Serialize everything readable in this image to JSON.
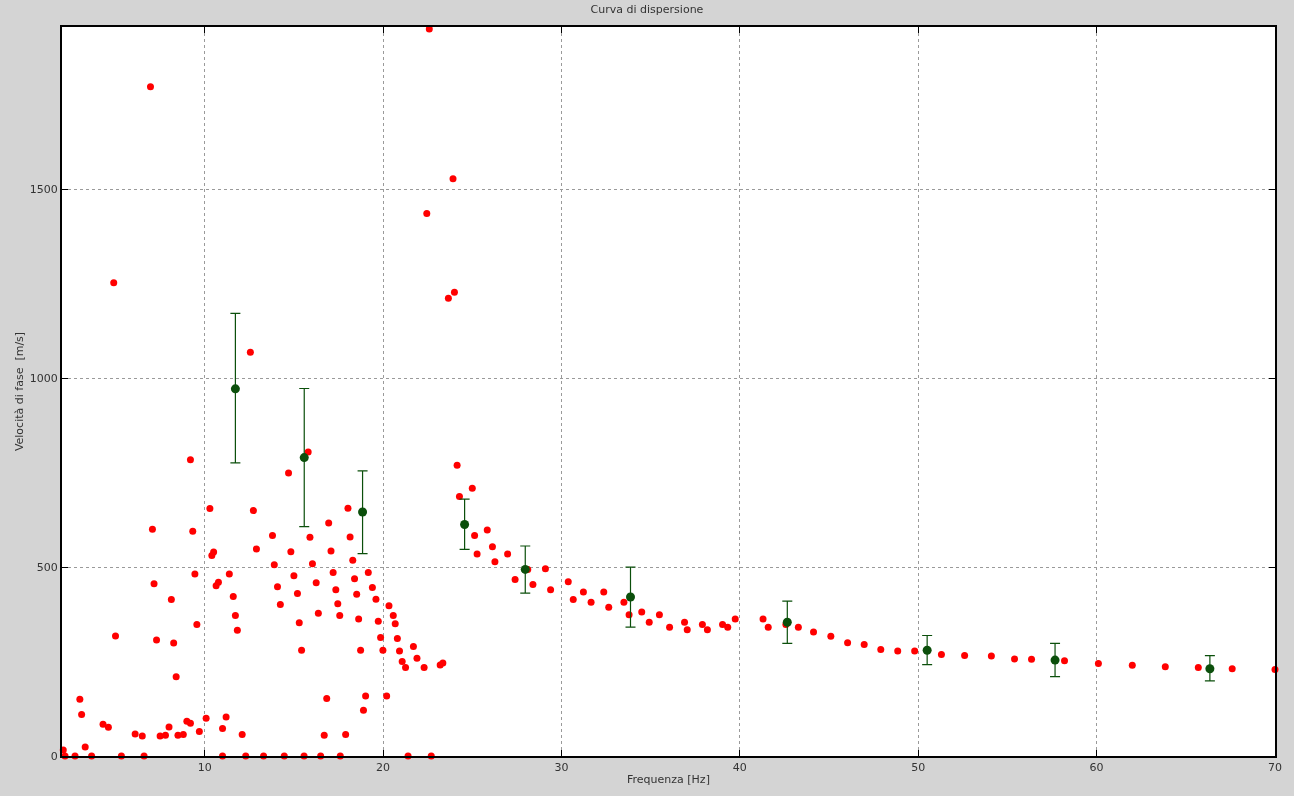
{
  "chart_data": {
    "type": "scatter",
    "title": "Curva di dispersione",
    "xlabel": "Frequenza [Hz]",
    "ylabel": "Velocità di fase  [m/s]",
    "xlim": [
      2,
      70
    ],
    "xticks": [
      10,
      20,
      30,
      40,
      50,
      60,
      70
    ],
    "ylim": [
      0,
      1930
    ],
    "yticks": [
      0,
      500,
      1000,
      1500
    ],
    "grid": true,
    "marker": "circle",
    "series": [
      {
        "color": "#ff0000",
        "x": [
          2.07,
          3.0,
          3.1,
          3.3,
          4.3,
          4.6,
          4.9,
          5.0,
          6.1,
          6.5,
          6.96,
          7.07,
          7.16,
          7.3,
          7.5,
          7.8,
          8.0,
          8.13,
          8.26,
          8.4,
          8.5,
          8.8,
          9.0,
          9.2,
          9.2,
          9.33,
          9.45,
          9.56,
          9.7,
          10.08,
          10.29,
          10.4,
          10.5,
          10.64,
          10.77,
          11.0,
          11.2,
          11.38,
          11.6,
          11.72,
          11.83,
          12.1,
          12.56,
          12.73,
          12.9,
          13.8,
          13.9,
          14.08,
          14.24,
          14.7,
          14.83,
          15.0,
          15.2,
          15.3,
          15.43,
          15.8,
          15.9,
          16.04,
          16.25,
          16.37,
          16.7,
          16.84,
          16.95,
          17.08,
          17.2,
          17.35,
          17.46,
          17.57,
          17.9,
          18.03,
          18.15,
          18.3,
          18.4,
          18.52,
          18.63,
          18.74,
          18.9,
          19.02,
          19.17,
          19.4,
          19.6,
          19.73,
          19.86,
          19.99,
          20.2,
          20.33,
          20.57,
          20.68,
          20.8,
          20.92,
          21.07,
          21.26,
          21.7,
          21.9,
          22.3,
          22.45,
          22.59,
          23.2,
          23.35,
          23.66,
          23.92,
          24.0,
          24.15,
          24.28,
          25.0,
          25.13,
          25.27,
          25.84,
          26.13,
          26.27,
          26.98,
          27.4,
          28.11,
          28.4,
          29.1,
          29.39,
          30.38,
          30.66,
          31.23,
          31.66,
          32.37,
          32.65,
          33.5,
          33.79,
          34.5,
          34.92,
          35.49,
          36.06,
          36.9,
          37.05,
          37.9,
          38.18,
          39.03,
          39.32,
          39.74,
          41.3,
          41.59,
          42.58,
          43.28,
          44.13,
          45.1,
          46.04,
          46.97,
          47.9,
          48.85,
          49.8,
          51.3,
          52.6,
          54.1,
          55.4,
          56.35,
          58.2,
          60.1,
          62.0,
          63.85,
          65.7,
          67.6,
          70.0,
          2.17,
          2.73,
          3.66,
          5.33,
          6.6,
          11.0,
          12.3,
          13.3,
          14.46,
          15.57,
          16.5,
          17.6,
          21.4,
          22.7
        ],
        "values": [
          16,
          150,
          110,
          24,
          84,
          76,
          1253,
          318,
          58,
          53,
          1772,
          600,
          456,
          307,
          53,
          55,
          77,
          414,
          299,
          210,
          55,
          57,
          92,
          87,
          784,
          595,
          482,
          348,
          65,
          100,
          655,
          531,
          540,
          451,
          460,
          73,
          103,
          482,
          422,
          372,
          333,
          57,
          1069,
          650,
          548,
          584,
          506,
          448,
          401,
          749,
          541,
          477,
          430,
          353,
          280,
          805,
          579,
          509,
          459,
          378,
          55,
          152,
          617,
          543,
          486,
          440,
          403,
          372,
          57,
          656,
          580,
          518,
          469,
          428,
          363,
          280,
          121,
          159,
          486,
          446,
          415,
          357,
          314,
          280,
          159,
          398,
          372,
          350,
          311,
          278,
          250,
          234,
          290,
          259,
          234,
          1436,
          1925,
          241,
          246,
          1212,
          1528,
          1228,
          770,
          687,
          709,
          584,
          535,
          598,
          554,
          514,
          535,
          467,
          494,
          454,
          496,
          440,
          461,
          414,
          434,
          407,
          434,
          394,
          407,
          374,
          381,
          354,
          374,
          341,
          354,
          334,
          348,
          334,
          348,
          341,
          363,
          363,
          341,
          348,
          341,
          328,
          317,
          300,
          295,
          282,
          278,
          278,
          269,
          266,
          265,
          257,
          256,
          252,
          245,
          240,
          236,
          234,
          231,
          229,
          0,
          0,
          0,
          0,
          0,
          0,
          0,
          0,
          0,
          0,
          0,
          0,
          0,
          0
        ]
      },
      {
        "color": "#0b4f0b",
        "x": [
          11.72,
          15.58,
          18.85,
          24.57,
          27.97,
          33.87,
          42.66,
          50.5,
          57.67,
          66.35
        ],
        "values": [
          972,
          790,
          646,
          613,
          494,
          421,
          354,
          280,
          254,
          231
        ],
        "errors": [
          [
            776,
            1172
          ],
          [
            607,
            973
          ],
          [
            536,
            755
          ],
          [
            547,
            680
          ],
          [
            431,
            556
          ],
          [
            341,
            500
          ],
          [
            298,
            410
          ],
          [
            242,
            319
          ],
          [
            210,
            298
          ],
          [
            199,
            266
          ]
        ]
      }
    ]
  }
}
